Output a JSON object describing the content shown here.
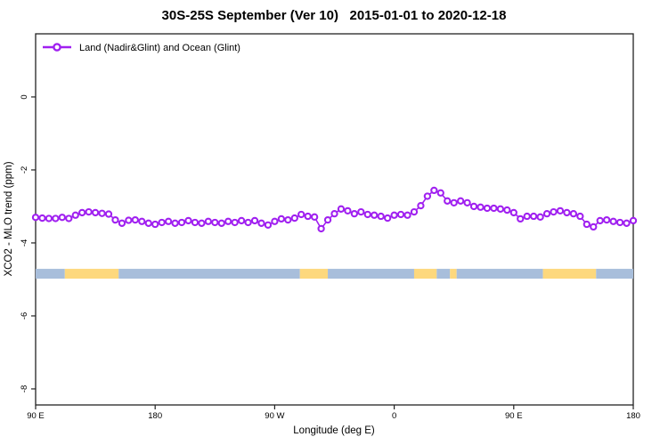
{
  "title": "30S-25S September (Ver 10)   2015-01-01 to 2020-12-18",
  "legend": {
    "label": "Land (Nadir&Glint) and Ocean (Glint)",
    "position": "top-left"
  },
  "colors": {
    "series": "#A020F0",
    "ocean_band": "#A8BEDB",
    "land_band": "#FDD87D",
    "axis": "#222222"
  },
  "chart_data": {
    "type": "line",
    "title": "30S-25S September (Ver 10)   2015-01-01 to 2020-12-18",
    "xlabel": "Longitude (deg E)",
    "ylabel": "XCO2 - MLO trend (ppm)",
    "xlim": [
      90,
      540
    ],
    "ylim": [
      -8.44,
      1.73
    ],
    "grid": false,
    "legend_position": "top-left",
    "x_ticks": [
      {
        "value": 90,
        "label": "90 E"
      },
      {
        "value": 180,
        "label": "180"
      },
      {
        "value": 270,
        "label": "90 W"
      },
      {
        "value": 360,
        "label": "0"
      },
      {
        "value": 450,
        "label": "90 E"
      },
      {
        "value": 540,
        "label": "180"
      }
    ],
    "y_ticks": [
      {
        "value": 0,
        "label": "0"
      },
      {
        "value": -2,
        "label": "-2"
      },
      {
        "value": -4,
        "label": "-4"
      },
      {
        "value": -6,
        "label": "-6"
      },
      {
        "value": -8,
        "label": "-8"
      }
    ],
    "series": [
      {
        "name": "Land (Nadir&Glint) and Ocean (Glint)",
        "color": "#A020F0",
        "marker": "open-circle",
        "x": [
          90,
          95,
          100,
          105,
          110,
          115,
          120,
          125,
          130,
          135,
          140,
          145,
          150,
          155,
          160,
          165,
          170,
          175,
          180,
          185,
          190,
          195,
          200,
          205,
          210,
          215,
          220,
          225,
          230,
          235,
          240,
          245,
          250,
          255,
          260,
          265,
          270,
          275,
          280,
          285,
          290,
          295,
          300,
          305,
          310,
          315,
          320,
          325,
          330,
          335,
          340,
          345,
          350,
          355,
          360,
          365,
          370,
          375,
          380,
          385,
          390,
          395,
          400,
          405,
          410,
          415,
          420,
          425,
          430,
          435,
          440,
          445,
          450,
          455,
          460,
          465,
          470,
          475,
          480,
          485,
          490,
          495,
          500,
          505,
          510,
          515,
          520,
          525,
          530,
          535,
          540
        ],
        "y": [
          -3.3,
          -3.32,
          -3.33,
          -3.33,
          -3.3,
          -3.33,
          -3.24,
          -3.17,
          -3.15,
          -3.17,
          -3.19,
          -3.21,
          -3.37,
          -3.46,
          -3.38,
          -3.37,
          -3.41,
          -3.46,
          -3.49,
          -3.44,
          -3.41,
          -3.46,
          -3.44,
          -3.39,
          -3.44,
          -3.46,
          -3.41,
          -3.44,
          -3.46,
          -3.41,
          -3.44,
          -3.39,
          -3.44,
          -3.39,
          -3.46,
          -3.51,
          -3.41,
          -3.34,
          -3.37,
          -3.32,
          -3.22,
          -3.27,
          -3.29,
          -3.61,
          -3.37,
          -3.2,
          -3.07,
          -3.12,
          -3.2,
          -3.15,
          -3.22,
          -3.24,
          -3.27,
          -3.32,
          -3.24,
          -3.22,
          -3.24,
          -3.15,
          -2.98,
          -2.72,
          -2.56,
          -2.63,
          -2.85,
          -2.9,
          -2.85,
          -2.9,
          -3.0,
          -3.02,
          -3.05,
          -3.05,
          -3.07,
          -3.1,
          -3.17,
          -3.34,
          -3.27,
          -3.27,
          -3.29,
          -3.2,
          -3.15,
          -3.12,
          -3.17,
          -3.2,
          -3.27,
          -3.49,
          -3.56,
          -3.39,
          -3.37,
          -3.41,
          -3.44,
          -3.46,
          -3.39
        ]
      }
    ],
    "land_ocean_band": {
      "description": "surface type strip along longitude",
      "y_top": -4.71,
      "y_bottom": -4.98,
      "ocean_color": "#A8BEDB",
      "land_color": "#FDD87D",
      "segments": [
        {
          "surface": "ocean",
          "from": 90,
          "to": 112
        },
        {
          "surface": "land",
          "from": 112,
          "to": 152.5
        },
        {
          "surface": "ocean",
          "from": 152.5,
          "to": 289
        },
        {
          "surface": "land",
          "from": 289,
          "to": 310
        },
        {
          "surface": "ocean",
          "from": 310,
          "to": 375
        },
        {
          "surface": "land",
          "from": 375,
          "to": 392
        },
        {
          "surface": "ocean",
          "from": 392,
          "to": 402
        },
        {
          "surface": "land",
          "from": 402,
          "to": 407
        },
        {
          "surface": "ocean",
          "from": 407,
          "to": 472
        },
        {
          "surface": "land",
          "from": 472,
          "to": 512
        },
        {
          "surface": "ocean",
          "from": 512,
          "to": 540
        }
      ]
    }
  }
}
